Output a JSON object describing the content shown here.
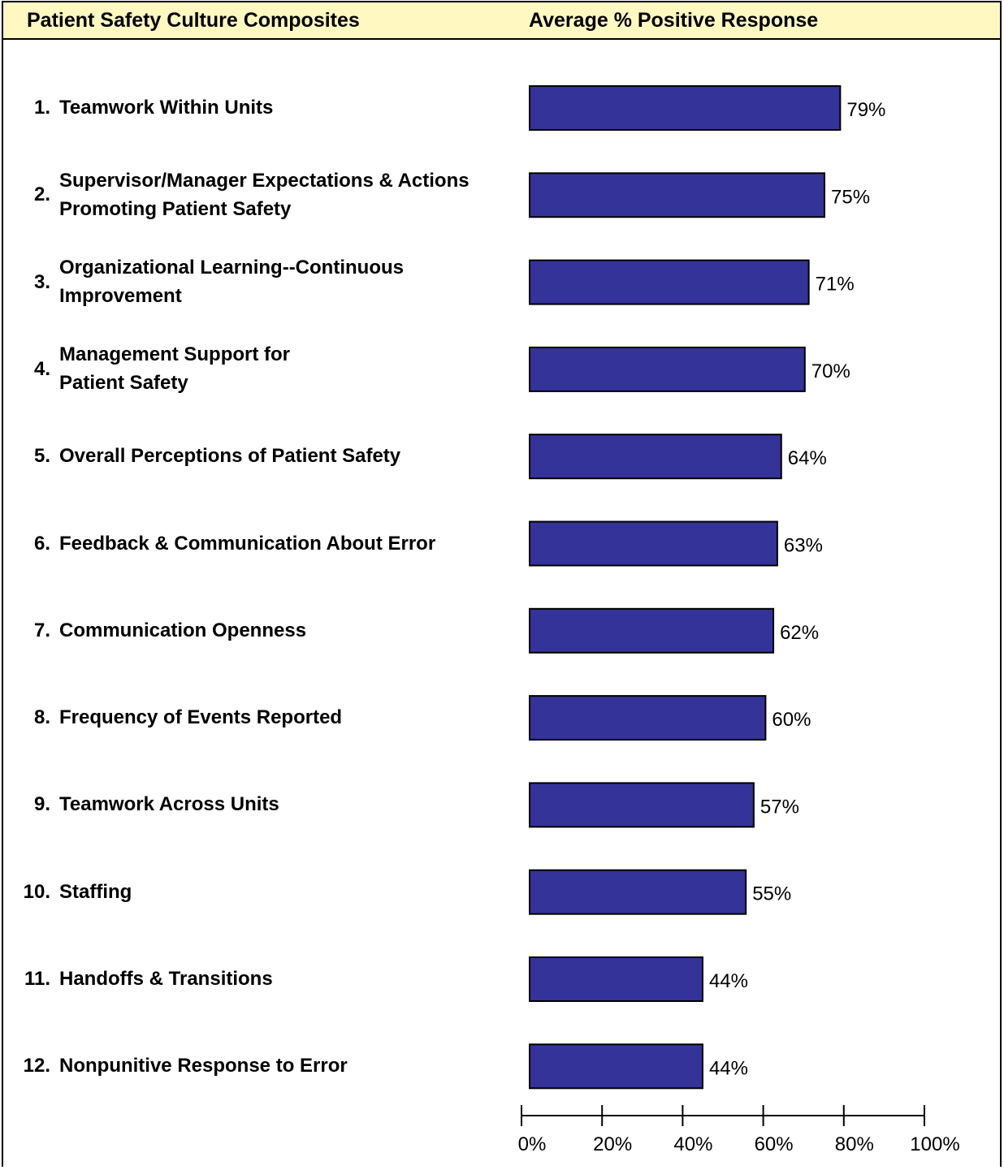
{
  "header": {
    "left": "Patient Safety Culture Composites",
    "right": "Average % Positive Response"
  },
  "colors": {
    "bar": "#333399",
    "header_bg": "#fff8c0"
  },
  "chart_data": {
    "type": "bar",
    "orientation": "horizontal",
    "categories": [
      {
        "num": "1.",
        "lines": [
          "Teamwork Within Units"
        ]
      },
      {
        "num": "2.",
        "lines": [
          "Supervisor/Manager Expectations & Actions",
          "Promoting Patient Safety"
        ]
      },
      {
        "num": "3.",
        "lines": [
          "Organizational Learning--Continuous",
          "Improvement"
        ]
      },
      {
        "num": "4.",
        "lines": [
          "Management Support for",
          "Patient Safety"
        ]
      },
      {
        "num": "5.",
        "lines": [
          "Overall Perceptions of Patient Safety"
        ]
      },
      {
        "num": "6.",
        "lines": [
          "Feedback & Communication About Error"
        ]
      },
      {
        "num": "7.",
        "lines": [
          "Communication Openness"
        ]
      },
      {
        "num": "8.",
        "lines": [
          "Frequency of Events Reported"
        ]
      },
      {
        "num": "9.",
        "lines": [
          "Teamwork Across Units"
        ]
      },
      {
        "num": "10.",
        "lines": [
          "Staffing"
        ]
      },
      {
        "num": "11.",
        "lines": [
          "Handoffs & Transitions"
        ]
      },
      {
        "num": "12.",
        "lines": [
          "Nonpunitive Response to Error"
        ]
      }
    ],
    "values": [
      79,
      75,
      71,
      70,
      64,
      63,
      62,
      60,
      57,
      55,
      44,
      44
    ],
    "value_labels": [
      "79%",
      "75%",
      "71%",
      "70%",
      "64%",
      "63%",
      "62%",
      "60%",
      "57%",
      "55%",
      "44%",
      "44%"
    ],
    "xlim": [
      0,
      100
    ],
    "xticks": [
      0,
      20,
      40,
      60,
      80,
      100
    ],
    "xtick_labels": [
      "0%",
      "20%",
      "40%",
      "60%",
      "80%",
      "100%"
    ],
    "grid": false
  }
}
